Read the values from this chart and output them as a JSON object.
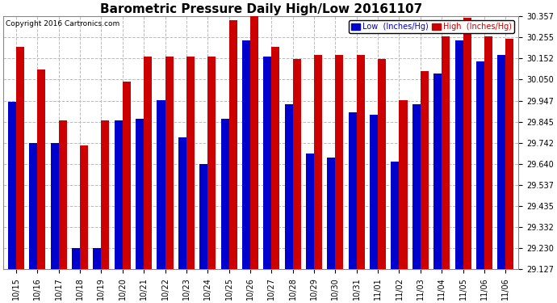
{
  "title": "Barometric Pressure Daily High/Low 20161107",
  "copyright": "Copyright 2016 Cartronics.com",
  "legend_low": "Low  (Inches/Hg)",
  "legend_high": "High  (Inches/Hg)",
  "low_color": "#0000cc",
  "high_color": "#cc0000",
  "bg_color": "#ffffff",
  "grid_color": "#bbbbbb",
  "ylim_min": 29.127,
  "ylim_max": 30.357,
  "yticks": [
    29.127,
    29.23,
    29.332,
    29.435,
    29.537,
    29.64,
    29.742,
    29.845,
    29.947,
    30.05,
    30.152,
    30.255,
    30.357
  ],
  "dates": [
    "10/15",
    "10/16",
    "10/17",
    "10/18",
    "10/19",
    "10/20",
    "10/21",
    "10/22",
    "10/23",
    "10/24",
    "10/25",
    "10/26",
    "10/27",
    "10/28",
    "10/29",
    "10/30",
    "10/31",
    "11/01",
    "11/02",
    "11/03",
    "11/04",
    "11/05",
    "11/06",
    "11/06"
  ],
  "high_values": [
    30.21,
    30.1,
    29.85,
    29.73,
    29.85,
    30.04,
    30.16,
    30.16,
    30.16,
    30.16,
    30.34,
    30.36,
    30.21,
    30.15,
    30.17,
    30.17,
    30.17,
    30.15,
    29.95,
    30.09,
    30.26,
    30.35,
    30.26,
    30.25
  ],
  "low_values": [
    29.94,
    29.74,
    29.74,
    29.23,
    29.23,
    29.85,
    29.86,
    29.95,
    29.77,
    29.64,
    29.86,
    30.24,
    30.16,
    29.93,
    29.69,
    29.67,
    29.89,
    29.88,
    29.65,
    29.93,
    30.08,
    30.24,
    30.14,
    30.17
  ],
  "title_fontsize": 11,
  "tick_fontsize": 7,
  "copyright_fontsize": 6.5,
  "legend_fontsize": 7,
  "bar_width": 0.38
}
